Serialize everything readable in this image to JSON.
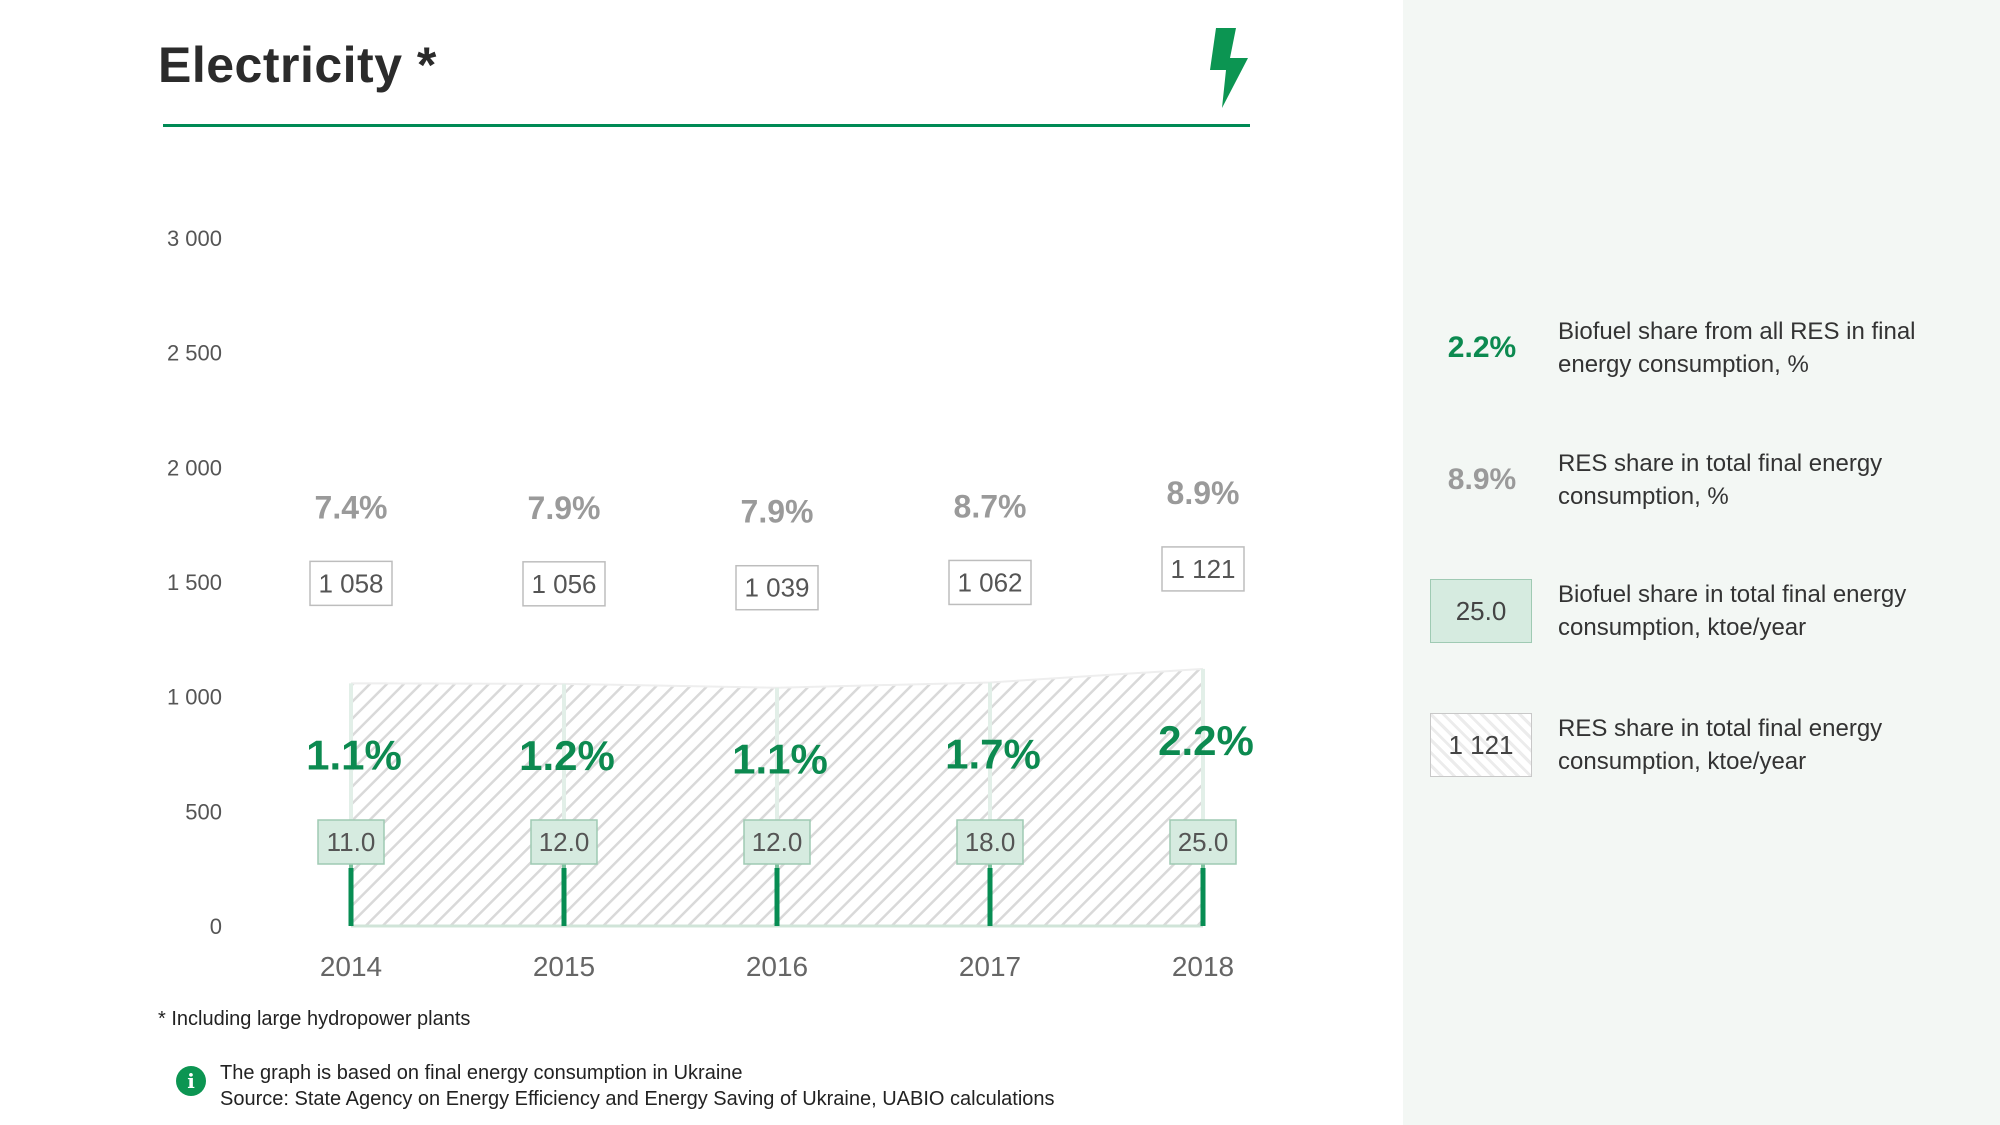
{
  "header": {
    "title": "Electricity *"
  },
  "colors": {
    "accent_green": "#008a55",
    "grey_text": "#9a9a9a",
    "sidebar_bg": "#f3f7f4",
    "box_green": "#d6ebe0"
  },
  "icons": {
    "bolt": "lightning-bolt-icon",
    "info": "info-icon"
  },
  "chart_data": {
    "type": "area",
    "categories": [
      "2014",
      "2015",
      "2016",
      "2017",
      "2018"
    ],
    "ylim": [
      0,
      3000
    ],
    "yticks": [
      "0",
      "500",
      "1 000",
      "1 500",
      "2 000",
      "2 500",
      "3 000"
    ],
    "ytick_values": [
      0,
      500,
      1000,
      1500,
      2000,
      2500,
      3000
    ],
    "series": [
      {
        "name": "RES share in total final energy consumption, ktoe/year",
        "values": [
          1058,
          1056,
          1039,
          1062,
          1121
        ],
        "labels": [
          "1 058",
          "1 056",
          "1 039",
          "1 062",
          "1 121"
        ]
      },
      {
        "name": "Biofuel share in total final energy consumption, ktoe/year",
        "values": [
          11.0,
          12.0,
          12.0,
          18.0,
          25.0
        ],
        "labels": [
          "11.0",
          "12.0",
          "12.0",
          "18.0",
          "25.0"
        ]
      }
    ],
    "res_share_pct": [
      "7.4%",
      "7.9%",
      "7.9%",
      "8.7%",
      "8.9%"
    ],
    "biofuel_share_pct": [
      "1.1%",
      "1.2%",
      "1.1%",
      "1.7%",
      "2.2%"
    ]
  },
  "footnote": "* Including large hydropower plants",
  "source": {
    "line1": "The graph is based on final energy consumption in Ukraine",
    "line2": "Source: State Agency on Energy Efficiency and Energy Saving of Ukraine, UABIO calculations",
    "info_glyph": "i"
  },
  "legend": [
    {
      "sample": "2.2%",
      "text": "Biofuel share from all RES in final energy consumption, %"
    },
    {
      "sample": "8.9%",
      "text": "RES share in total final energy consumption, %"
    },
    {
      "sample": "25.0",
      "text": "Biofuel share in total final energy consumption, ktoe/year"
    },
    {
      "sample": "1 121",
      "text": "RES share in total final energy consumption, ktoe/year"
    }
  ]
}
